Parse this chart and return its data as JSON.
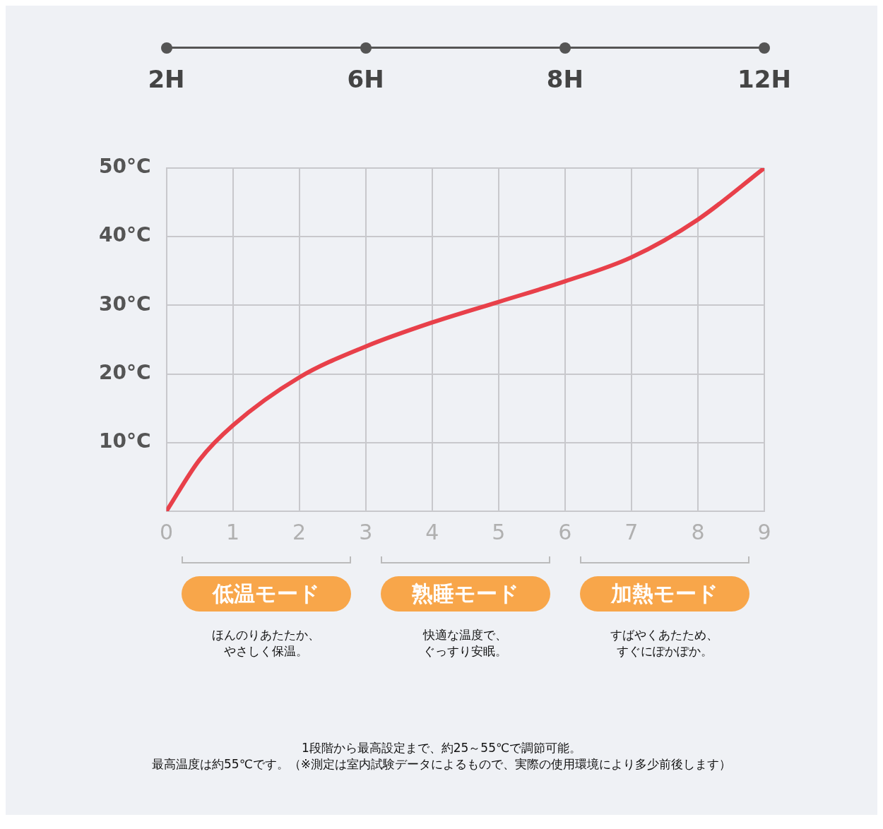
{
  "chart_data": {
    "type": "line",
    "x": [
      0,
      0.5,
      1,
      2,
      3,
      4,
      5,
      6,
      7,
      8,
      9
    ],
    "series": [
      {
        "color": "#e8404a",
        "values": [
          0,
          7.5,
          12.5,
          19.5,
          24,
          27.5,
          30.5,
          33.5,
          37,
          42.5,
          50
        ]
      }
    ],
    "xlim": [
      0,
      9
    ],
    "xticks": [
      0,
      1,
      2,
      3,
      4,
      5,
      6,
      7,
      8,
      9
    ],
    "ylim": [
      0,
      50
    ],
    "yticks": [
      {
        "value": 10,
        "label": "10°C"
      },
      {
        "value": 20,
        "label": "20°C"
      },
      {
        "value": 30,
        "label": "30°C"
      },
      {
        "value": 40,
        "label": "40°C"
      },
      {
        "value": 50,
        "label": "50°C"
      }
    ],
    "grid": true,
    "legend": false,
    "marker": "none",
    "line_style": "solid",
    "annotations": [
      "2H",
      "6H",
      "8H",
      "12H",
      "低温モード",
      "ほんのりあたたか、やさしく保温。",
      "熟睡モード",
      "快適な温度で、ぐっすり安眠。",
      "加熱モード",
      "すばやくあたため、すぐにぽかぽか。",
      "1段階から最高設定まで、約25～55℃で調節可能。",
      "最高温度は約55℃です。（※測定は室内試験データによるもので、実際の使用環境により多少前後します）"
    ]
  }
}
